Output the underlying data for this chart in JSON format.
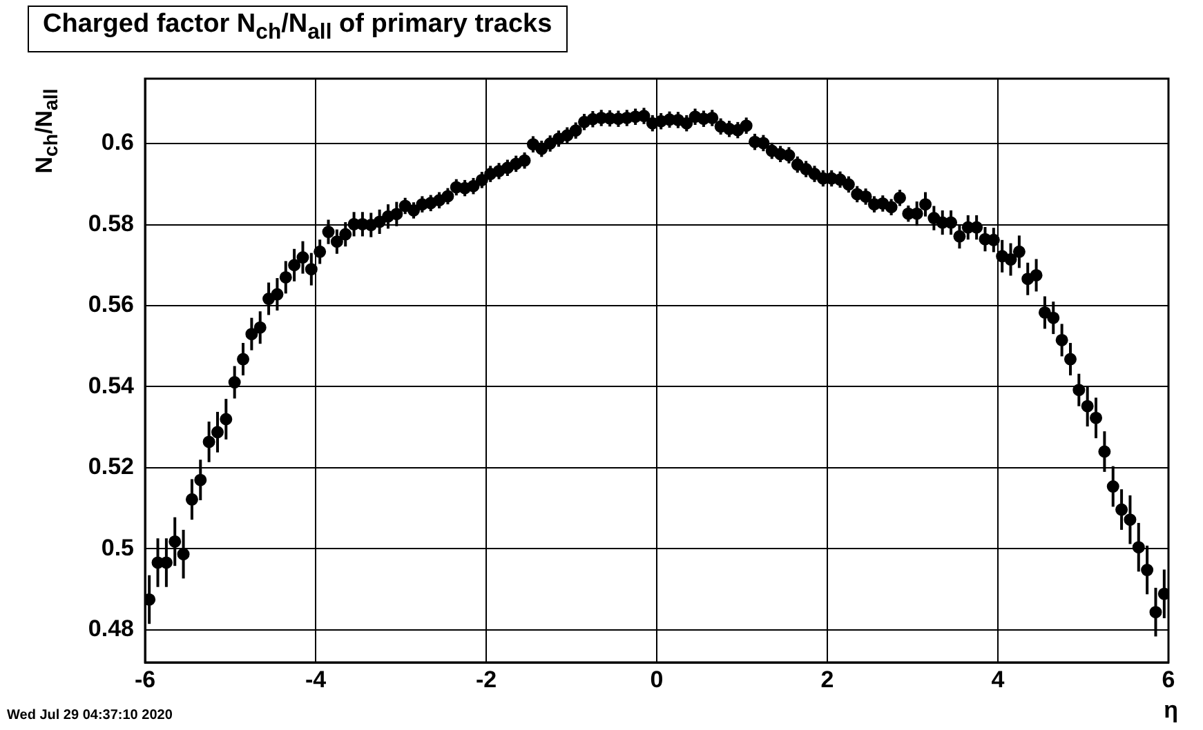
{
  "chart_data": {
    "type": "scatter",
    "title": "Charged factor N$_{ch}$/N$_{all}$ of primary tracks",
    "xlabel": "η",
    "ylabel": "N$_{ch}$/N$_{all}$",
    "annotations": [
      "Wed Jul 29 04:37:10 2020"
    ],
    "x": [
      -5.95,
      -5.85,
      -5.75,
      -5.65,
      -5.55,
      -5.45,
      -5.35,
      -5.25,
      -5.15,
      -5.05,
      -4.95,
      -4.85,
      -4.75,
      -4.65,
      -4.55,
      -4.45,
      -4.35,
      -4.25,
      -4.15,
      -4.05,
      -3.95,
      -3.85,
      -3.75,
      -3.65,
      -3.55,
      -3.45,
      -3.35,
      -3.25,
      -3.15,
      -3.05,
      -2.95,
      -2.85,
      -2.75,
      -2.65,
      -2.55,
      -2.45,
      -2.35,
      -2.25,
      -2.15,
      -2.05,
      -1.95,
      -1.85,
      -1.75,
      -1.65,
      -1.55,
      -1.45,
      -1.35,
      -1.25,
      -1.15,
      -1.05,
      -0.95,
      -0.85,
      -0.75,
      -0.65,
      -0.55,
      -0.45,
      -0.35,
      -0.25,
      -0.15,
      -0.05,
      0.05,
      0.15,
      0.25,
      0.35,
      0.45,
      0.55,
      0.65,
      0.75,
      0.85,
      0.95,
      1.05,
      1.15,
      1.25,
      1.35,
      1.45,
      1.55,
      1.65,
      1.75,
      1.85,
      1.95,
      2.05,
      2.15,
      2.25,
      2.35,
      2.45,
      2.55,
      2.65,
      2.75,
      2.85,
      2.95,
      3.05,
      3.15,
      3.25,
      3.35,
      3.45,
      3.55,
      3.65,
      3.75,
      3.85,
      3.95,
      4.05,
      4.15,
      4.25,
      4.35,
      4.45,
      4.55,
      4.65,
      4.75,
      4.85,
      4.95,
      5.05,
      5.15,
      5.25,
      5.35,
      5.45,
      5.55,
      5.65,
      5.75,
      5.85,
      5.95
    ],
    "values": [
      0.4875,
      0.4966,
      0.4966,
      0.5018,
      0.4987,
      0.5122,
      0.517,
      0.5264,
      0.5288,
      0.532,
      0.5411,
      0.5468,
      0.553,
      0.5546,
      0.5617,
      0.5628,
      0.567,
      0.57,
      0.5719,
      0.569,
      0.5733,
      0.5782,
      0.5758,
      0.5776,
      0.5801,
      0.5801,
      0.5799,
      0.5807,
      0.582,
      0.5826,
      0.5846,
      0.5835,
      0.585,
      0.5853,
      0.586,
      0.587,
      0.5892,
      0.589,
      0.5895,
      0.591,
      0.5925,
      0.5932,
      0.594,
      0.595,
      0.5958,
      0.5998,
      0.5987,
      0.6,
      0.6012,
      0.602,
      0.6032,
      0.6053,
      0.606,
      0.6063,
      0.6062,
      0.6061,
      0.6063,
      0.6066,
      0.6068,
      0.605,
      0.6055,
      0.6059,
      0.6058,
      0.605,
      0.6066,
      0.6061,
      0.6063,
      0.6042,
      0.6036,
      0.6033,
      0.6044,
      0.6004,
      0.6001,
      0.5982,
      0.5974,
      0.5971,
      0.5948,
      0.5937,
      0.5925,
      0.5914,
      0.5914,
      0.5911,
      0.5899,
      0.5875,
      0.5869,
      0.585,
      0.5852,
      0.5843,
      0.5866,
      0.5827,
      0.5827,
      0.585,
      0.5816,
      0.5805,
      0.5805,
      0.5771,
      0.5793,
      0.5793,
      0.5764,
      0.5762,
      0.5722,
      0.5714,
      0.5733,
      0.5666,
      0.5675,
      0.5583,
      0.557,
      0.5515,
      0.5468,
      0.5392,
      0.5352,
      0.5323,
      0.524,
      0.5154,
      0.5097,
      0.5072,
      0.5004,
      0.4948,
      0.4844,
      0.4889
    ],
    "errors": [
      0.006,
      0.006,
      0.006,
      0.006,
      0.006,
      0.005,
      0.005,
      0.005,
      0.005,
      0.005,
      0.004,
      0.004,
      0.004,
      0.004,
      0.004,
      0.004,
      0.004,
      0.004,
      0.004,
      0.004,
      0.003,
      0.003,
      0.003,
      0.003,
      0.003,
      0.003,
      0.003,
      0.003,
      0.003,
      0.003,
      0.002,
      0.002,
      0.002,
      0.002,
      0.002,
      0.002,
      0.002,
      0.002,
      0.002,
      0.002,
      0.002,
      0.002,
      0.002,
      0.002,
      0.002,
      0.002,
      0.002,
      0.002,
      0.002,
      0.002,
      0.002,
      0.002,
      0.002,
      0.002,
      0.002,
      0.002,
      0.002,
      0.002,
      0.002,
      0.002,
      0.002,
      0.002,
      0.002,
      0.002,
      0.002,
      0.002,
      0.002,
      0.002,
      0.002,
      0.002,
      0.002,
      0.002,
      0.002,
      0.002,
      0.002,
      0.002,
      0.002,
      0.002,
      0.002,
      0.002,
      0.002,
      0.002,
      0.002,
      0.002,
      0.002,
      0.002,
      0.002,
      0.002,
      0.002,
      0.002,
      0.003,
      0.003,
      0.003,
      0.003,
      0.003,
      0.003,
      0.003,
      0.003,
      0.003,
      0.003,
      0.004,
      0.004,
      0.004,
      0.004,
      0.004,
      0.004,
      0.004,
      0.004,
      0.004,
      0.004,
      0.005,
      0.005,
      0.005,
      0.005,
      0.005,
      0.006,
      0.006,
      0.006,
      0.006,
      0.006
    ],
    "color": "#000000",
    "marker": "circle",
    "grid": true,
    "xlim": [
      -6,
      6
    ],
    "xticks": [
      -6,
      -4,
      -2,
      0,
      2,
      4,
      6
    ],
    "ylim": [
      0.472,
      0.616
    ],
    "yticks": [
      0.48,
      0.5,
      0.52,
      0.54,
      0.56,
      0.58,
      0.6
    ]
  }
}
